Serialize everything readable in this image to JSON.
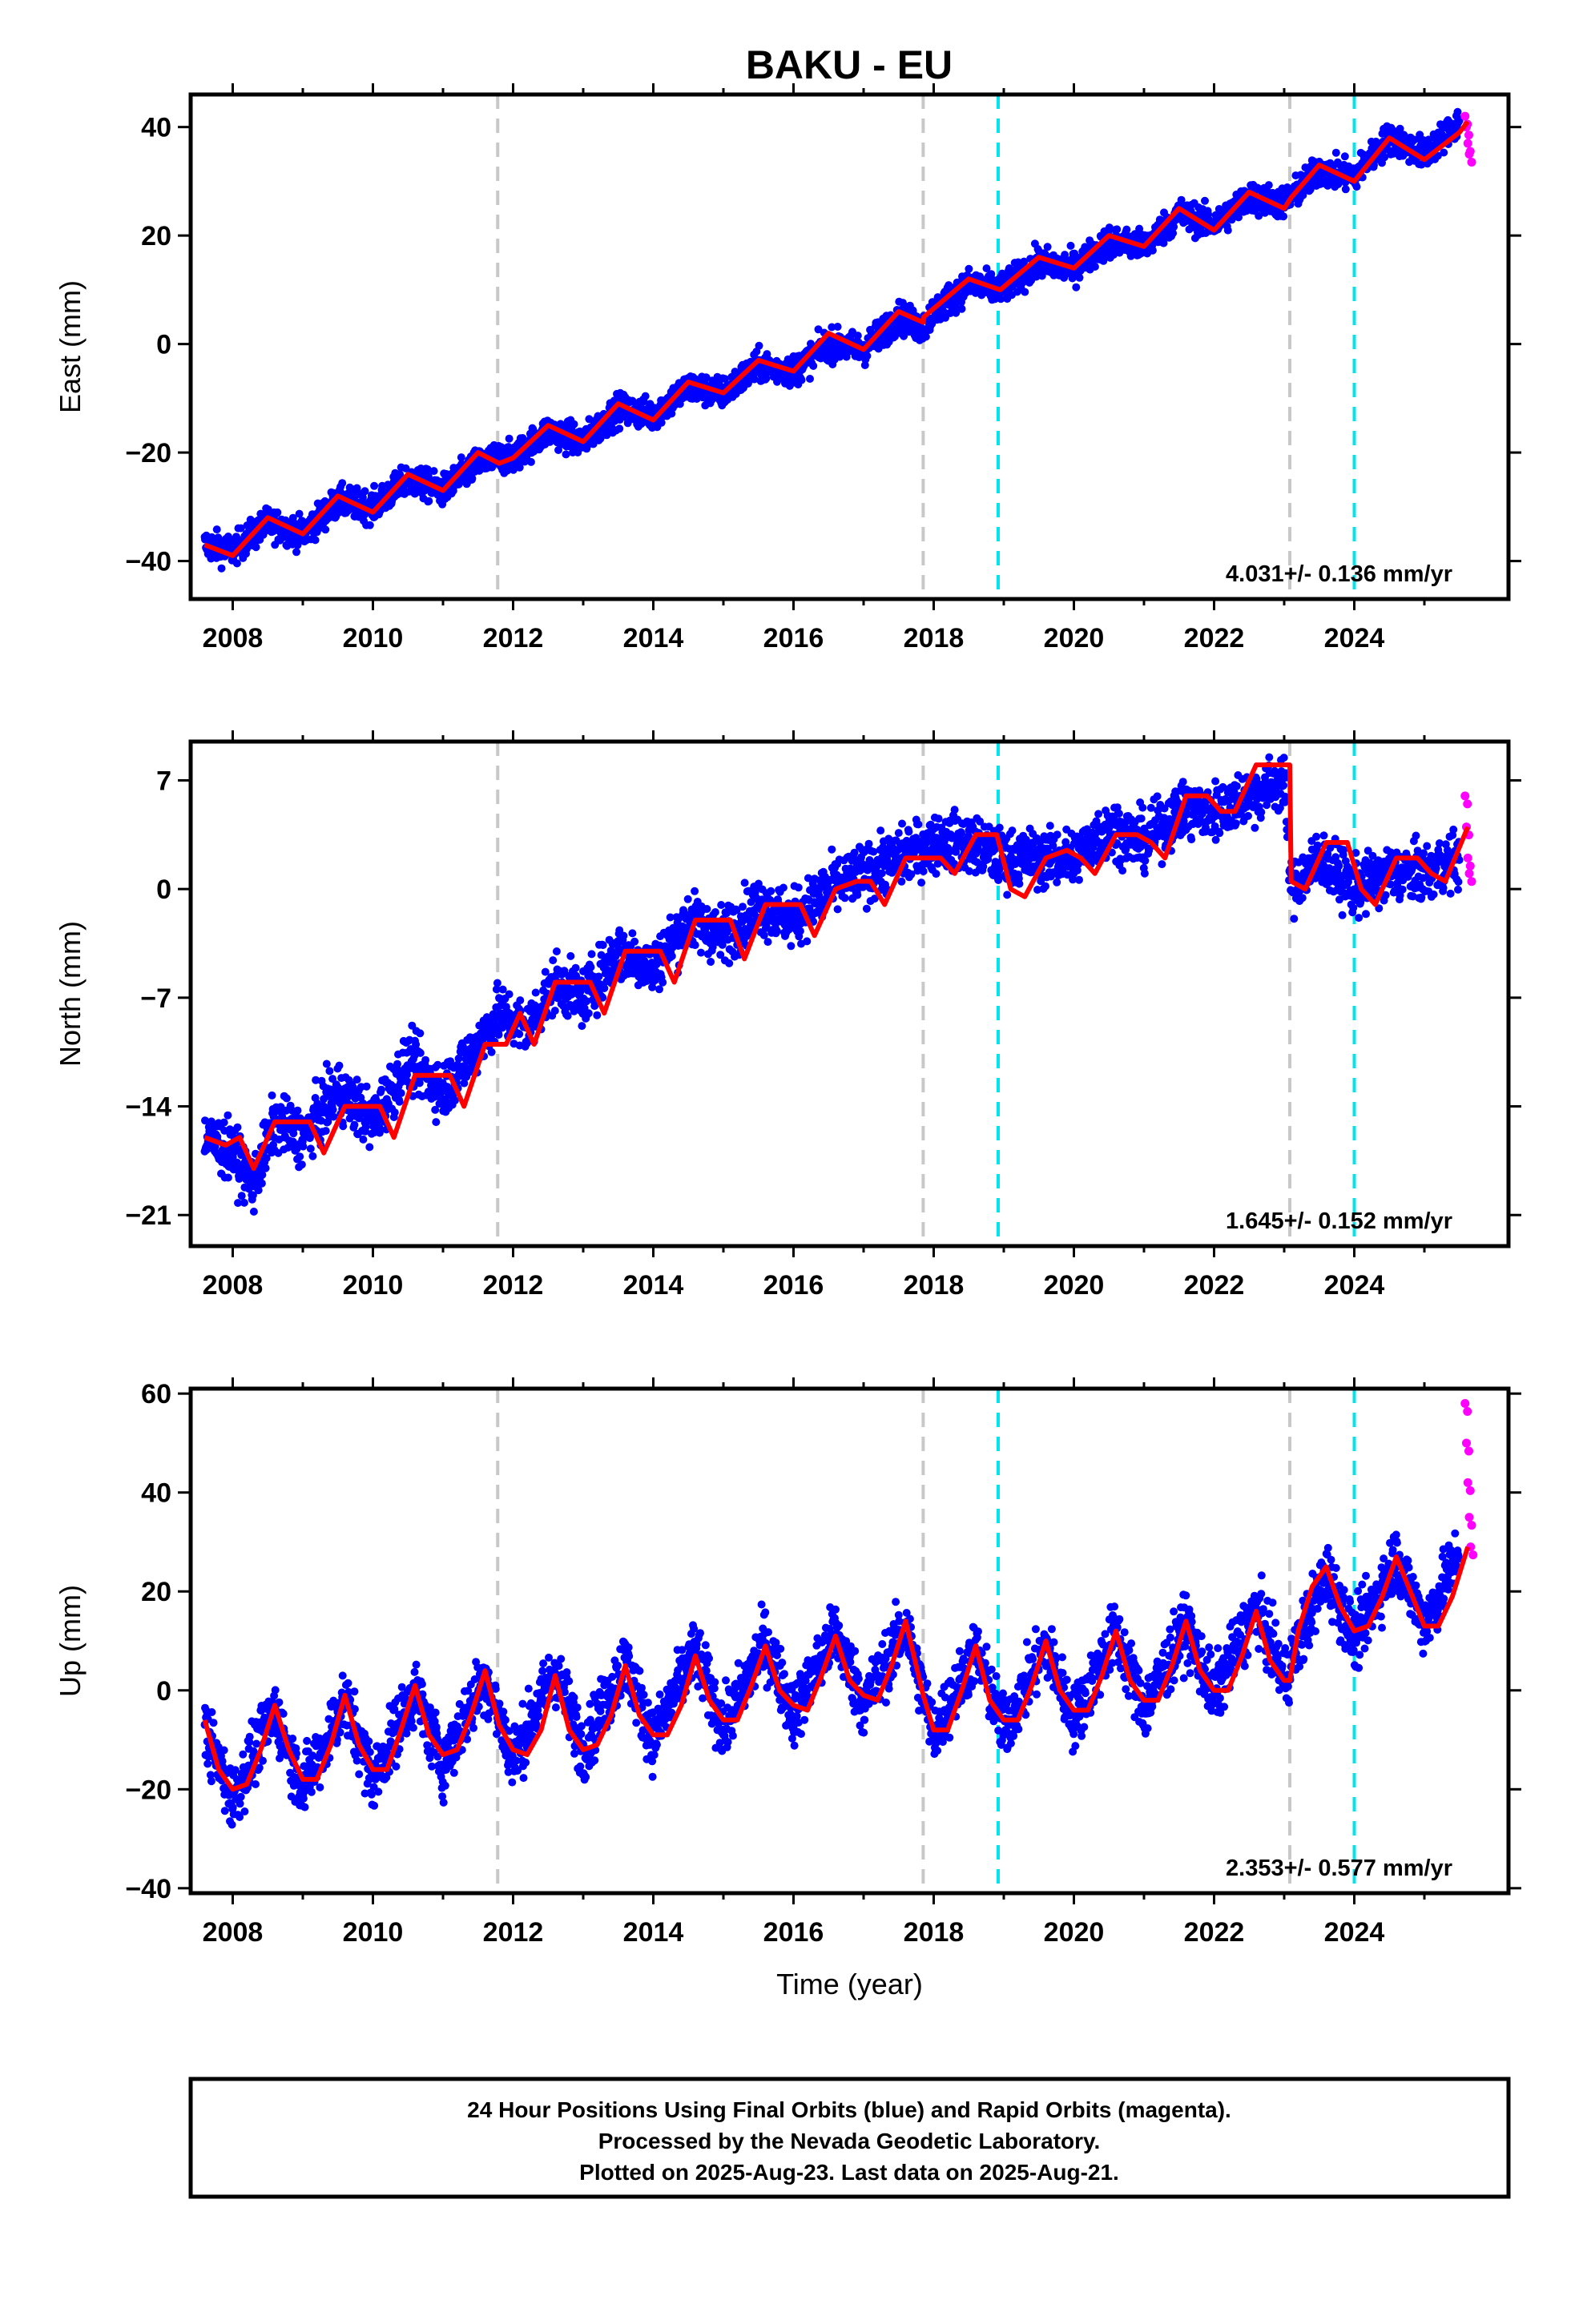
{
  "title": "BAKU - EU",
  "footer": {
    "line1": "24 Hour Positions Using Final Orbits (blue) and Rapid Orbits (magenta).",
    "line2": "Processed by the Nevada Geodetic Laboratory.",
    "line3": "Plotted on 2025-Aug-23. Last data on 2025-Aug-21."
  },
  "colors": {
    "final_orbits": "#0000ff",
    "rapid_orbits": "#ff00ff",
    "model": "#ff0000",
    "equipment_change": "#c8c8c8",
    "earthquake": "#00e5ee"
  },
  "chart_data": [
    {
      "type": "scatter",
      "ylabel": "East (mm)",
      "xlabel": "",
      "xlim": [
        2007.4,
        2026.2
      ],
      "ylim": [
        -47,
        46
      ],
      "xticks": [
        "2008",
        "2010",
        "2012",
        "2014",
        "2016",
        "2018",
        "2020",
        "2022",
        "2024"
      ],
      "yticks": [
        "40",
        "20",
        "0",
        "−20",
        "−40"
      ],
      "ytick_values": [
        40,
        20,
        0,
        -20,
        -40
      ],
      "rate_label": "4.031+/- 0.136 mm/yr",
      "series": [
        {
          "color": "blue",
          "x": [
            2007.6,
            2008.0,
            2008.5,
            2009.0,
            2009.5,
            2010.0,
            2010.5,
            2011.0,
            2011.5,
            2011.8,
            2012.0,
            2012.5,
            2013.0,
            2013.5,
            2014.0,
            2014.5,
            2015.0,
            2015.5,
            2016.0,
            2016.5,
            2017.0,
            2017.5,
            2017.85,
            2018.0,
            2018.5,
            2018.95,
            2019.5,
            2020.0,
            2020.5,
            2021.0,
            2021.5,
            2022.0,
            2022.5,
            2023.0,
            2023.5,
            2024.0,
            2024.5,
            2025.0,
            2025.5
          ],
          "y": [
            -37,
            -38,
            -33,
            -35,
            -29,
            -30,
            -25,
            -27,
            -22,
            -21,
            -21,
            -16,
            -18,
            -12,
            -13,
            -8,
            -9,
            -4,
            -5,
            0,
            -1,
            5,
            3,
            6,
            11,
            10,
            15,
            14,
            19,
            18,
            24,
            22,
            27,
            26,
            32,
            31,
            38,
            35,
            41
          ]
        },
        {
          "color": "magenta",
          "x": [
            2025.58,
            2025.6,
            2025.62,
            2025.64
          ],
          "y": [
            42,
            40,
            37,
            35
          ]
        },
        {
          "color": "red",
          "name": "",
          "x": [
            2007.6,
            2008.0,
            2008.5,
            2009.0,
            2009.5,
            2010.0,
            2010.5,
            2011.0,
            2011.5,
            2011.8,
            2012.0,
            2012.5,
            2013.0,
            2013.5,
            2014.0,
            2014.5,
            2015.0,
            2015.5,
            2016.0,
            2016.5,
            2017.0,
            2017.5,
            2017.85,
            2017.86,
            2018.5,
            2018.95,
            2019.5,
            2020.0,
            2020.5,
            2021.0,
            2021.5,
            2022.0,
            2022.5,
            2023.0,
            2023.1,
            2023.5,
            2024.0,
            2024.5,
            2025.0,
            2025.5,
            2025.62
          ],
          "y": [
            -37,
            -39,
            -32,
            -35,
            -28,
            -31,
            -24,
            -27,
            -20,
            -22,
            -21,
            -15,
            -18,
            -11,
            -14,
            -7,
            -9,
            -3,
            -5,
            2,
            -1,
            6,
            4,
            5,
            12,
            10,
            16,
            14,
            20,
            18,
            25,
            21,
            28,
            25,
            27,
            33,
            30,
            38,
            34,
            39,
            41
          ]
        }
      ],
      "vlines": [
        {
          "x": 2011.78,
          "kind": "equipment"
        },
        {
          "x": 2017.85,
          "kind": "equipment"
        },
        {
          "x": 2018.92,
          "kind": "earthquake"
        },
        {
          "x": 2023.08,
          "kind": "equipment"
        },
        {
          "x": 2024.0,
          "kind": "earthquake"
        }
      ]
    },
    {
      "type": "scatter",
      "ylabel": "North (mm)",
      "xlabel": "",
      "xlim": [
        2007.4,
        2026.2
      ],
      "ylim": [
        -23,
        9.5
      ],
      "xticks": [
        "2008",
        "2010",
        "2012",
        "2014",
        "2016",
        "2018",
        "2020",
        "2022",
        "2024"
      ],
      "yticks": [
        "7",
        "0",
        "−7",
        "−14",
        "−21"
      ],
      "ytick_values": [
        7,
        0,
        -7,
        -14,
        -21
      ],
      "rate_label": "1.645+/- 0.152 mm/yr",
      "series": [
        {
          "color": "blue",
          "x": [
            2007.6,
            2008.0,
            2008.3,
            2008.6,
            2009.0,
            2009.5,
            2010.0,
            2010.5,
            2011.0,
            2011.5,
            2011.8,
            2012.2,
            2012.6,
            2013.0,
            2013.5,
            2014.0,
            2014.5,
            2015.0,
            2015.5,
            2016.0,
            2016.5,
            2017.0,
            2017.5,
            2018.0,
            2018.5,
            2018.95,
            2019.5,
            2020.0,
            2020.5,
            2021.0,
            2021.5,
            2022.0,
            2022.5,
            2023.0,
            2023.1,
            2023.5,
            2024.0,
            2024.5,
            2025.0,
            2025.5
          ],
          "y": [
            -16,
            -17,
            -19,
            -15,
            -16,
            -13,
            -15,
            -11,
            -13,
            -10,
            -8,
            -9,
            -6,
            -7,
            -4,
            -5,
            -2,
            -3,
            -1,
            -2,
            0,
            1,
            2,
            3,
            3,
            2,
            2,
            2,
            4,
            3,
            5,
            5,
            6,
            7,
            0,
            2,
            0,
            1,
            1,
            2
          ]
        },
        {
          "color": "magenta",
          "x": [
            2025.58,
            2025.6,
            2025.62,
            2025.64
          ],
          "y": [
            6,
            4,
            2,
            1
          ]
        },
        {
          "color": "red",
          "name": "",
          "x": [
            2007.6,
            2007.9,
            2008.1,
            2008.3,
            2008.6,
            2008.9,
            2009.1,
            2009.3,
            2009.6,
            2009.9,
            2010.1,
            2010.3,
            2010.6,
            2010.9,
            2011.1,
            2011.3,
            2011.6,
            2011.9,
            2012.1,
            2012.3,
            2012.6,
            2012.9,
            2013.1,
            2013.3,
            2013.6,
            2013.9,
            2014.1,
            2014.3,
            2014.6,
            2014.9,
            2015.1,
            2015.3,
            2015.6,
            2015.9,
            2016.1,
            2016.3,
            2016.6,
            2016.9,
            2017.1,
            2017.3,
            2017.6,
            2017.9,
            2018.1,
            2018.3,
            2018.6,
            2018.9,
            2019.1,
            2019.3,
            2019.6,
            2019.9,
            2020.1,
            2020.3,
            2020.6,
            2020.9,
            2021.1,
            2021.3,
            2021.6,
            2021.9,
            2022.1,
            2022.3,
            2022.6,
            2022.9,
            2023.08,
            2023.1,
            2023.3,
            2023.6,
            2023.9,
            2024.1,
            2024.3,
            2024.6,
            2024.9,
            2025.1,
            2025.3,
            2025.62
          ],
          "y": [
            -16,
            -16.5,
            -16,
            -18,
            -15,
            -15,
            -15,
            -17,
            -14,
            -14,
            -14,
            -16,
            -12,
            -12,
            -12,
            -14,
            -10,
            -10,
            -8,
            -10,
            -6,
            -6,
            -6,
            -8,
            -4,
            -4,
            -4,
            -6,
            -2,
            -2,
            -2,
            -4.5,
            -1,
            -1,
            -1,
            -3,
            0,
            0.5,
            0.5,
            -1,
            2,
            2,
            2,
            1,
            3.5,
            3.5,
            0,
            -0.5,
            2,
            2.5,
            2,
            1,
            3.5,
            3.5,
            3,
            2,
            6,
            6,
            5,
            5,
            8,
            8,
            8,
            0.5,
            0,
            3,
            3,
            0,
            -1,
            2,
            2,
            1,
            0.5,
            4
          ]
        }
      ],
      "vlines": [
        {
          "x": 2011.78,
          "kind": "equipment"
        },
        {
          "x": 2017.85,
          "kind": "equipment"
        },
        {
          "x": 2018.92,
          "kind": "earthquake"
        },
        {
          "x": 2023.08,
          "kind": "equipment"
        },
        {
          "x": 2024.0,
          "kind": "earthquake"
        }
      ]
    },
    {
      "type": "scatter",
      "ylabel": "Up (mm)",
      "xlabel": "Time (year)",
      "xlim": [
        2007.4,
        2026.2
      ],
      "ylim": [
        -41,
        61
      ],
      "xticks": [
        "2008",
        "2010",
        "2012",
        "2014",
        "2016",
        "2018",
        "2020",
        "2022",
        "2024"
      ],
      "yticks": [
        "60",
        "40",
        "20",
        "0",
        "−20",
        "−40"
      ],
      "ytick_values": [
        60,
        40,
        20,
        0,
        -20,
        -40
      ],
      "rate_label": "2.353+/- 0.577 mm/yr",
      "series": [
        {
          "color": "blue",
          "x": [
            2007.6,
            2008.0,
            2008.6,
            2009.0,
            2009.6,
            2010.0,
            2010.6,
            2011.0,
            2011.6,
            2012.0,
            2012.6,
            2013.0,
            2013.6,
            2014.0,
            2014.6,
            2015.0,
            2015.6,
            2016.0,
            2016.6,
            2017.0,
            2017.6,
            2018.0,
            2018.6,
            2019.0,
            2019.6,
            2020.0,
            2020.6,
            2021.0,
            2021.6,
            2022.0,
            2022.6,
            2023.0,
            2023.6,
            2024.0,
            2024.6,
            2025.0,
            2025.5
          ],
          "y": [
            -8,
            -22,
            -4,
            -20,
            -2,
            -18,
            0,
            -15,
            3,
            -14,
            4,
            -12,
            6,
            -10,
            8,
            -8,
            10,
            -5,
            12,
            -3,
            13,
            -9,
            8,
            -8,
            9,
            -6,
            12,
            -4,
            13,
            -1,
            17,
            2,
            24,
            10,
            27,
            13,
            28
          ]
        },
        {
          "color": "magenta",
          "x": [
            2025.58,
            2025.6,
            2025.62,
            2025.64,
            2025.66
          ],
          "y": [
            58,
            50,
            42,
            35,
            29
          ]
        },
        {
          "color": "red",
          "name": "",
          "x": [
            2007.6,
            2007.8,
            2008.0,
            2008.2,
            2008.4,
            2008.6,
            2008.8,
            2009.0,
            2009.2,
            2009.4,
            2009.6,
            2009.8,
            2010.0,
            2010.2,
            2010.4,
            2010.6,
            2010.8,
            2011.0,
            2011.2,
            2011.4,
            2011.6,
            2011.8,
            2012.0,
            2012.2,
            2012.4,
            2012.6,
            2012.8,
            2013.0,
            2013.2,
            2013.4,
            2013.6,
            2013.8,
            2014.0,
            2014.2,
            2014.4,
            2014.6,
            2014.8,
            2015.0,
            2015.2,
            2015.4,
            2015.6,
            2015.8,
            2016.0,
            2016.2,
            2016.4,
            2016.6,
            2016.8,
            2017.0,
            2017.2,
            2017.4,
            2017.6,
            2017.85,
            2018.0,
            2018.2,
            2018.4,
            2018.6,
            2018.8,
            2019.0,
            2019.2,
            2019.4,
            2019.6,
            2019.8,
            2020.0,
            2020.2,
            2020.4,
            2020.6,
            2020.8,
            2021.0,
            2021.2,
            2021.4,
            2021.6,
            2021.8,
            2022.0,
            2022.2,
            2022.4,
            2022.6,
            2022.8,
            2023.0,
            2023.08,
            2023.2,
            2023.4,
            2023.6,
            2023.8,
            2024.0,
            2024.2,
            2024.4,
            2024.6,
            2024.8,
            2025.0,
            2025.2,
            2025.4,
            2025.62
          ],
          "y": [
            -6,
            -16,
            -20,
            -19,
            -12,
            -3,
            -12,
            -18,
            -18,
            -11,
            -1,
            -11,
            -16,
            -16,
            -8,
            1,
            -9,
            -13,
            -12,
            -5,
            4,
            -7,
            -12,
            -13,
            -8,
            3,
            -8,
            -12,
            -11,
            -5,
            5,
            -5,
            -9,
            -9,
            -3,
            7,
            -2,
            -6,
            -6,
            1,
            9,
            0,
            -3,
            -4,
            3,
            11,
            2,
            -1,
            -2,
            5,
            14,
            -1,
            -8,
            -8,
            0,
            9,
            -2,
            -6,
            -6,
            1,
            10,
            0,
            -4,
            -4,
            3,
            12,
            2,
            -2,
            -2,
            5,
            14,
            4,
            0,
            0,
            7,
            16,
            6,
            2,
            2,
            12,
            21,
            25,
            17,
            12,
            13,
            19,
            27,
            20,
            13,
            13,
            19,
            29
          ]
        }
      ],
      "vlines": [
        {
          "x": 2011.78,
          "kind": "equipment"
        },
        {
          "x": 2017.85,
          "kind": "equipment"
        },
        {
          "x": 2018.92,
          "kind": "earthquake"
        },
        {
          "x": 2023.08,
          "kind": "equipment"
        },
        {
          "x": 2024.0,
          "kind": "earthquake"
        }
      ]
    }
  ]
}
